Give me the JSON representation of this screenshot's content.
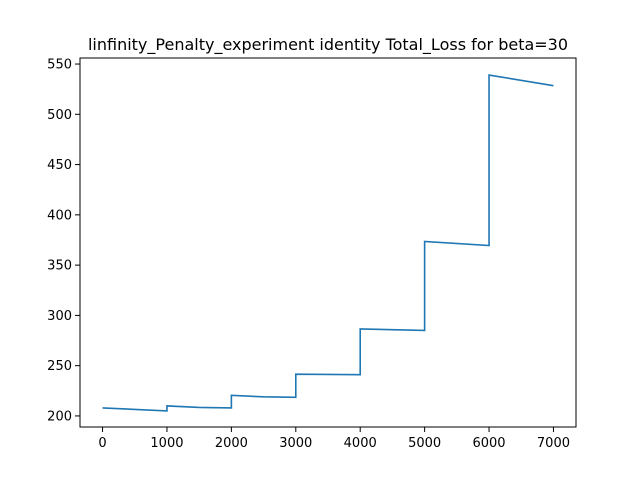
{
  "chart_data": {
    "type": "line",
    "title": "linfinity_Penalty_experiment identity Total_Loss for beta=30",
    "xlabel": "",
    "ylabel": "",
    "xlim": [
      -350,
      7350
    ],
    "ylim": [
      189,
      556
    ],
    "grid": false,
    "x_ticks": [
      0,
      1000,
      2000,
      3000,
      4000,
      5000,
      6000,
      7000
    ],
    "x_tick_labels": [
      "0",
      "1000",
      "2000",
      "3000",
      "4000",
      "5000",
      "6000",
      "7000"
    ],
    "y_ticks": [
      200,
      250,
      300,
      350,
      400,
      450,
      500,
      550
    ],
    "y_tick_labels": [
      "200",
      "250",
      "300",
      "350",
      "400",
      "450",
      "500",
      "550"
    ],
    "series": [
      {
        "color": "#1f77b4",
        "x": [
          0,
          1000,
          1000,
          1500,
          2000,
          2000,
          2500,
          3000,
          3000,
          4000,
          4000,
          5000,
          5000,
          6000,
          6000,
          7000
        ],
        "y": [
          208,
          205,
          210,
          208.5,
          208,
          220.5,
          219,
          218.5,
          241.5,
          241,
          286.5,
          285,
          373.5,
          369.5,
          539,
          528.5
        ]
      }
    ]
  }
}
